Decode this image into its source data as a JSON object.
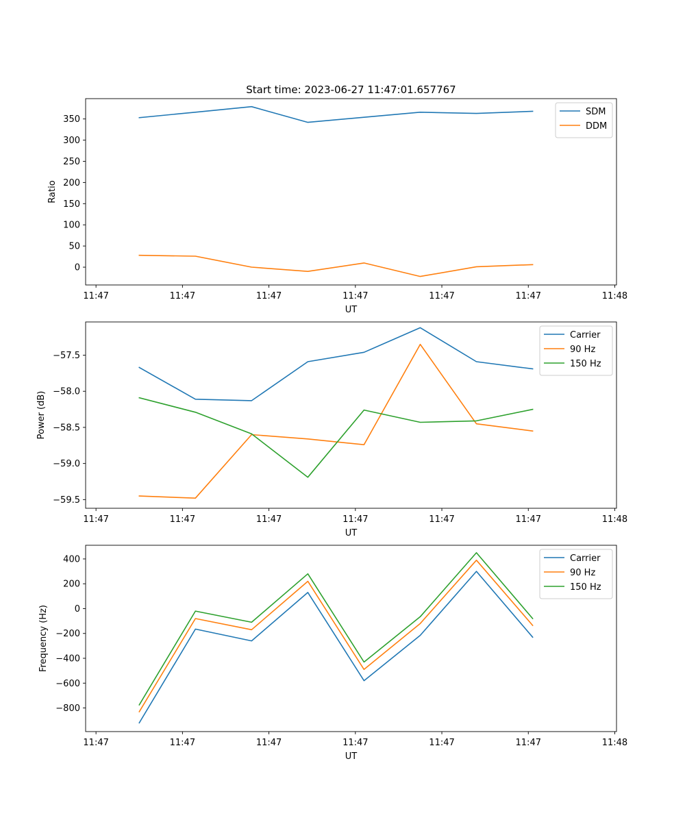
{
  "figure_title": "Start time: 2023-06-27 11:47:01.657767",
  "colors": {
    "blue": "#1f77b4",
    "orange": "#ff7f0e",
    "green": "#2ca02c"
  },
  "chart_data": [
    {
      "type": "line",
      "title": "Start time: 2023-06-27 11:47:01.657767",
      "xlabel": "UT",
      "ylabel": "Ratio",
      "x_tick_labels": [
        "11:47",
        "11:47",
        "11:47",
        "11:47",
        "11:47",
        "11:47",
        "11:48"
      ],
      "x_tick_values": [
        0,
        1,
        2,
        3,
        4,
        5,
        6
      ],
      "xlim": [
        -0.12,
        6.02
      ],
      "x": [
        0.5,
        1.15,
        1.8,
        2.45,
        3.1,
        3.75,
        4.4,
        5.05
      ],
      "ylim": [
        -42,
        398
      ],
      "y_ticks": [
        0,
        50,
        100,
        150,
        200,
        250,
        300,
        350
      ],
      "y_tick_labels": [
        "0",
        "50",
        "100",
        "150",
        "200",
        "250",
        "300",
        "350"
      ],
      "legend_position": "top-right",
      "series": [
        {
          "name": "SDM",
          "color": "#1f77b4",
          "values": [
            353,
            366,
            379,
            342,
            354,
            366,
            363,
            368
          ]
        },
        {
          "name": "DDM",
          "color": "#ff7f0e",
          "values": [
            28,
            26,
            0,
            -10,
            10,
            -22,
            1,
            6
          ]
        }
      ]
    },
    {
      "type": "line",
      "title": "",
      "xlabel": "UT",
      "ylabel": "Power (dB)",
      "x_tick_labels": [
        "11:47",
        "11:47",
        "11:47",
        "11:47",
        "11:47",
        "11:47",
        "11:48"
      ],
      "x_tick_values": [
        0,
        1,
        2,
        3,
        4,
        5,
        6
      ],
      "xlim": [
        -0.12,
        6.02
      ],
      "x": [
        0.5,
        1.15,
        1.8,
        2.45,
        3.1,
        3.75,
        4.4,
        5.05
      ],
      "ylim": [
        -59.62,
        -57.04
      ],
      "y_ticks": [
        -59.5,
        -59.0,
        -58.5,
        -58.0,
        -57.5
      ],
      "y_tick_labels": [
        "−59.5",
        "−59.0",
        "−58.5",
        "−58.0",
        "−57.5"
      ],
      "legend_position": "top-right",
      "series": [
        {
          "name": "Carrier",
          "color": "#1f77b4",
          "values": [
            -57.67,
            -58.11,
            -58.13,
            -57.59,
            -57.46,
            -57.12,
            -57.59,
            -57.69
          ]
        },
        {
          "name": "90 Hz",
          "color": "#ff7f0e",
          "values": [
            -59.45,
            -59.48,
            -58.6,
            -58.66,
            -58.74,
            -57.35,
            -58.45,
            -58.55
          ]
        },
        {
          "name": "150 Hz",
          "color": "#2ca02c",
          "values": [
            -58.09,
            -58.29,
            -58.59,
            -59.19,
            -58.26,
            -58.43,
            -58.41,
            -58.25
          ]
        }
      ]
    },
    {
      "type": "line",
      "title": "",
      "xlabel": "UT",
      "ylabel": "Frequency (Hz)",
      "x_tick_labels": [
        "11:47",
        "11:47",
        "11:47",
        "11:47",
        "11:47",
        "11:47",
        "11:48"
      ],
      "x_tick_values": [
        0,
        1,
        2,
        3,
        4,
        5,
        6
      ],
      "xlim": [
        -0.12,
        6.02
      ],
      "x": [
        0.5,
        1.15,
        1.8,
        2.45,
        3.1,
        3.75,
        4.4,
        5.05
      ],
      "ylim": [
        -990,
        510
      ],
      "y_ticks": [
        -800,
        -600,
        -400,
        -200,
        0,
        200,
        400
      ],
      "y_tick_labels": [
        "−800",
        "−600",
        "−400",
        "−200",
        "0",
        "200",
        "400"
      ],
      "legend_position": "top-right",
      "series": [
        {
          "name": "Carrier",
          "color": "#1f77b4",
          "values": [
            -920,
            -165,
            -260,
            130,
            -580,
            -215,
            300,
            -230
          ]
        },
        {
          "name": "90 Hz",
          "color": "#ff7f0e",
          "values": [
            -830,
            -80,
            -170,
            220,
            -490,
            -120,
            390,
            -135
          ]
        },
        {
          "name": "150 Hz",
          "color": "#2ca02c",
          "values": [
            -775,
            -20,
            -110,
            280,
            -430,
            -65,
            450,
            -80
          ]
        }
      ]
    }
  ]
}
